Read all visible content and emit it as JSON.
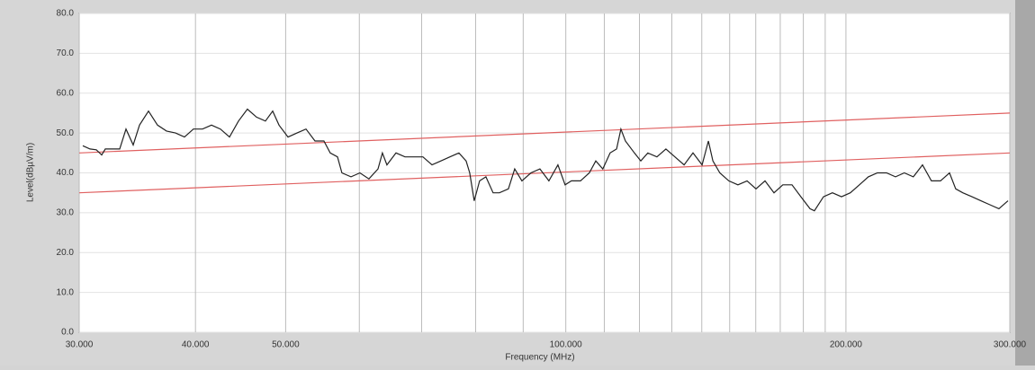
{
  "chart_data": {
    "type": "line",
    "xlabel": "Frequency (MHz)",
    "ylabel": "Level(dBµV/m)",
    "xscale": "log",
    "grid": true,
    "xlim": [
      30,
      300
    ],
    "ylim": [
      0,
      80
    ],
    "xticks": [
      {
        "value": 30,
        "label": "30.000"
      },
      {
        "value": 40,
        "label": "40.000"
      },
      {
        "value": 50,
        "label": "50.000"
      },
      {
        "value": 100,
        "label": "100.000"
      },
      {
        "value": 200,
        "label": "200.000"
      },
      {
        "value": 300,
        "label": "300.000"
      }
    ],
    "xticks_minor": [
      60,
      70,
      80,
      90,
      110,
      120,
      130,
      140,
      150,
      160,
      170,
      180,
      190
    ],
    "yticks": [
      {
        "value": 0,
        "label": "0.0"
      },
      {
        "value": 10,
        "label": "10.0"
      },
      {
        "value": 20,
        "label": "20.0"
      },
      {
        "value": 30,
        "label": "30.0"
      },
      {
        "value": 40,
        "label": "40.0"
      },
      {
        "value": 50,
        "label": "50.0"
      },
      {
        "value": 60,
        "label": "60.0"
      },
      {
        "value": 70,
        "label": "70.0"
      },
      {
        "value": 80,
        "label": "80.0"
      }
    ],
    "series": [
      {
        "color": "#e06060",
        "x": [
          30,
          300
        ],
        "values": [
          45,
          55
        ]
      },
      {
        "color": "#e06060",
        "x": [
          30,
          300
        ],
        "values": [
          35,
          45
        ]
      },
      {
        "color": "#222222",
        "x": [
          30.27,
          30.81,
          31.3,
          31.72,
          32.0,
          32.57,
          33.16,
          33.68,
          34.29,
          34.83,
          35.61,
          36.41,
          37.23,
          38.07,
          38.93,
          39.8,
          40.7,
          41.62,
          42.55,
          43.51,
          44.49,
          45.49,
          46.52,
          47.56,
          48.42,
          49.18,
          50.29,
          51.42,
          52.58,
          53.76,
          54.97,
          55.83,
          56.84,
          57.47,
          58.77,
          60.09,
          61.44,
          62.83,
          63.53,
          64.24,
          65.69,
          67.17,
          68.68,
          70.22,
          71.81,
          73.42,
          75.08,
          76.76,
          78.14,
          78.84,
          79.73,
          80.8,
          82.07,
          83.54,
          84.86,
          86.77,
          88.13,
          89.72,
          91.74,
          93.8,
          95.91,
          98.07,
          99.83,
          101.4,
          103.7,
          106.0,
          107.7,
          109.6,
          111.6,
          113.4,
          114.6,
          115.9,
          118.5,
          120.4,
          122.5,
          125.3,
          128.1,
          131.0,
          134.0,
          137.0,
          140.1,
          142.3,
          143.9,
          146.4,
          149.7,
          153.1,
          156.6,
          160.1,
          163.7,
          167.4,
          171.1,
          175.0,
          178.9,
          183.0,
          185.0,
          189.2,
          193.4,
          197.8,
          202.2,
          206.8,
          211.4,
          216.2,
          221.1,
          226.1,
          231.1,
          236.3,
          241.7,
          247.1,
          252.7,
          258.4,
          262.4,
          267.1,
          273.2,
          279.3,
          285.6,
          292.0,
          298.7
        ],
        "values": [
          46.8,
          46,
          45.8,
          44.5,
          46,
          46,
          46,
          51,
          47,
          52,
          55.5,
          52,
          50.5,
          50,
          49,
          51,
          51,
          52,
          51,
          49,
          53,
          56,
          54,
          53,
          55.5,
          52,
          49,
          50,
          51,
          48,
          48,
          45,
          44,
          40,
          39,
          40,
          38.5,
          41,
          45,
          42,
          45,
          44,
          44,
          44,
          42,
          43,
          44,
          45,
          43,
          40,
          33,
          38,
          39,
          35,
          35,
          36,
          41,
          38,
          40,
          41,
          38,
          42,
          37,
          38,
          38,
          40,
          43,
          41,
          45,
          46,
          51,
          48,
          45,
          43,
          45,
          44,
          46,
          44,
          42,
          45,
          42,
          48,
          43,
          40,
          38,
          37,
          38,
          36,
          38,
          35,
          37,
          37,
          34,
          31,
          30.5,
          34,
          35,
          34,
          35,
          37,
          39,
          40,
          40,
          39,
          40,
          39,
          42,
          38,
          38,
          40,
          36,
          35,
          34,
          33,
          32,
          31,
          33
        ]
      }
    ]
  }
}
